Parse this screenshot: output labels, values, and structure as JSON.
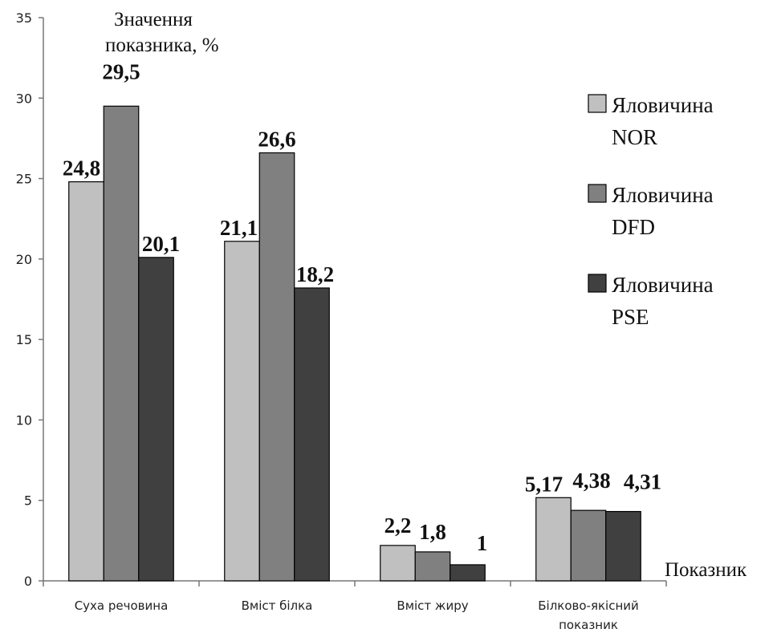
{
  "chart_data": {
    "type": "bar",
    "ylabel": "Значення показника, %",
    "xlabel": "Показник",
    "ylim": [
      0,
      35
    ],
    "yticks": [
      0,
      5,
      10,
      15,
      20,
      25,
      30,
      35
    ],
    "grid": false,
    "legend_position": "right",
    "categories": [
      [
        "Суха речовина"
      ],
      [
        "Вміст білка"
      ],
      [
        "Вміст жиру"
      ],
      [
        "Білково-якісний",
        "показник"
      ]
    ],
    "series": [
      {
        "name": [
          "Яловичина",
          "NOR"
        ],
        "color": "#c0c0c0",
        "values": [
          24.8,
          21.1,
          2.2,
          5.17
        ],
        "labels": [
          "24,8",
          "21,1",
          "2,2",
          "5,17"
        ]
      },
      {
        "name": [
          "Яловичина",
          "DFD"
        ],
        "color": "#808080",
        "values": [
          29.5,
          26.6,
          1.8,
          4.38
        ],
        "labels": [
          "29,5",
          "26,6",
          "1,8",
          "4,38"
        ]
      },
      {
        "name": [
          "Яловичина",
          "PSE"
        ],
        "color": "#404040",
        "values": [
          20.1,
          18.2,
          1.0,
          4.31
        ],
        "labels": [
          "20,1",
          "18,2",
          "1",
          "4,31"
        ]
      }
    ]
  }
}
